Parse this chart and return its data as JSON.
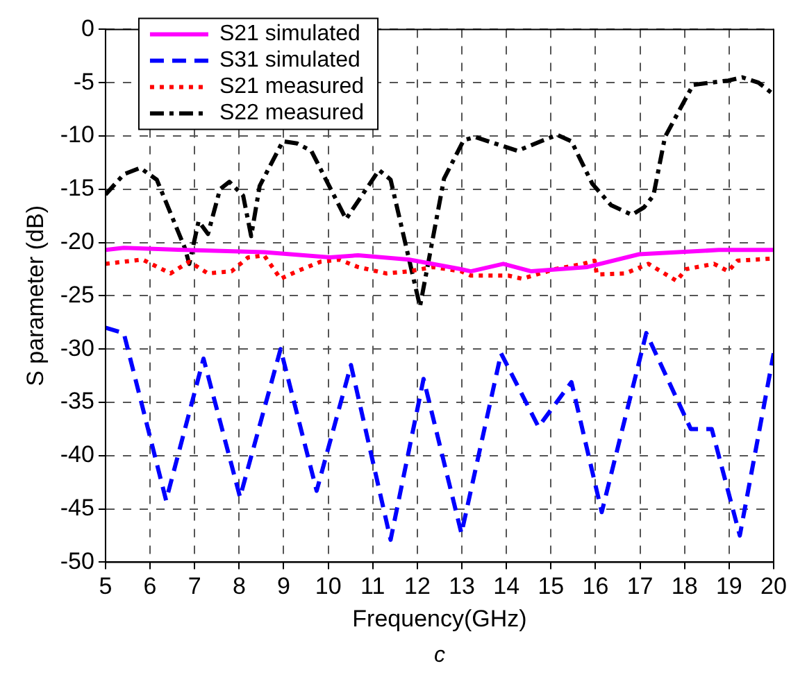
{
  "chart_data": {
    "type": "line",
    "xlabel": "Frequency(GHz)",
    "ylabel": "S parameter (dB)",
    "annotations": [
      "c"
    ],
    "xlim": [
      5,
      20
    ],
    "xticks": [
      5,
      6,
      7,
      8,
      9,
      10,
      11,
      12,
      13,
      14,
      15,
      16,
      17,
      18,
      19,
      20
    ],
    "ylim": [
      -50,
      0
    ],
    "yticks": [
      -50,
      -45,
      -40,
      -35,
      -30,
      -25,
      -20,
      -15,
      -10,
      -5,
      0
    ],
    "grid": true,
    "legend": "top left",
    "marker": "none",
    "series": [
      {
        "name": "S21 simulated",
        "color": "#ff00ff",
        "line_style": "solid",
        "x": [
          5,
          5.41,
          6.78,
          8.56,
          10.04,
          10.67,
          11.82,
          12.98,
          13.2,
          13.93,
          14.56,
          15.82,
          16.98,
          18.77,
          20
        ],
        "values": [
          -20.7,
          -20.5,
          -20.7,
          -20.9,
          -21.4,
          -21.2,
          -21.6,
          -22.5,
          -22.7,
          -22,
          -22.7,
          -22.3,
          -21.1,
          -20.7,
          -20.7
        ]
      },
      {
        "name": "S31 simulated",
        "color": "#0000ff",
        "line_style": "dashed",
        "x": [
          5,
          5.41,
          6.36,
          7.2,
          8.02,
          8.93,
          9.74,
          10.51,
          11.4,
          12.14,
          12.99,
          13.88,
          14.72,
          15.46,
          16.14,
          17.14,
          18.14,
          18.61,
          19.24,
          20
        ],
        "values": [
          -28,
          -28.5,
          -44.2,
          -30.9,
          -43.9,
          -30,
          -43.3,
          -31.5,
          -47.9,
          -32.8,
          -47.3,
          -30.4,
          -37.3,
          -33.1,
          -45.3,
          -28.5,
          -37.5,
          -37.5,
          -47.5,
          -30.4
        ]
      },
      {
        "name": "S21 measured",
        "color": "#ff0000",
        "line_style": "dotted",
        "x": [
          5,
          5.41,
          5.83,
          6.46,
          6.88,
          7.3,
          7.83,
          8.2,
          8.56,
          8.93,
          9.3,
          9.83,
          10.25,
          10.67,
          11.3,
          11.82,
          12.35,
          12.98,
          13.2,
          14.04,
          14.35,
          15.09,
          15.72,
          15.98,
          16.03,
          16.67,
          17.19,
          17.82,
          18.03,
          18.66,
          18.98,
          19.19,
          20
        ],
        "values": [
          -22,
          -21.8,
          -21.6,
          -22.9,
          -21.8,
          -22.9,
          -22.7,
          -21.4,
          -21.2,
          -23.4,
          -22.7,
          -21.8,
          -21.6,
          -22.3,
          -22.9,
          -22.7,
          -22.3,
          -22.7,
          -23.1,
          -23.1,
          -23.4,
          -22.5,
          -22,
          -21.7,
          -23,
          -22.9,
          -22,
          -23.6,
          -22.5,
          -22,
          -22.7,
          -21.7,
          -21.5
        ]
      },
      {
        "name": "S22 measured",
        "color": "#000000",
        "line_style": "dashdot",
        "x": [
          5,
          5.41,
          5.78,
          6.15,
          6.78,
          6.88,
          7.09,
          7.3,
          7.57,
          7.78,
          8.09,
          8.27,
          8.46,
          8.98,
          9.3,
          9.62,
          10.4,
          11.14,
          11.4,
          12.06,
          12.25,
          12.6,
          13.04,
          13.3,
          14.25,
          14.77,
          15.14,
          15.46,
          15.93,
          16.35,
          16.82,
          17.09,
          17.3,
          17.56,
          18.19,
          18.98,
          19.3,
          19.66,
          20
        ],
        "values": [
          -15.5,
          -13.6,
          -13,
          -14.1,
          -20.5,
          -22,
          -18,
          -19.2,
          -15,
          -14.3,
          -15.6,
          -19.4,
          -14.7,
          -10.5,
          -10.7,
          -11.4,
          -17.8,
          -13.2,
          -14.1,
          -26,
          -21.8,
          -14,
          -10.4,
          -10.1,
          -11.4,
          -10.5,
          -9.9,
          -10.5,
          -14.5,
          -16.5,
          -17.4,
          -16.7,
          -15.6,
          -10.1,
          -5.2,
          -4.8,
          -4.5,
          -5,
          -6.1
        ]
      }
    ]
  }
}
